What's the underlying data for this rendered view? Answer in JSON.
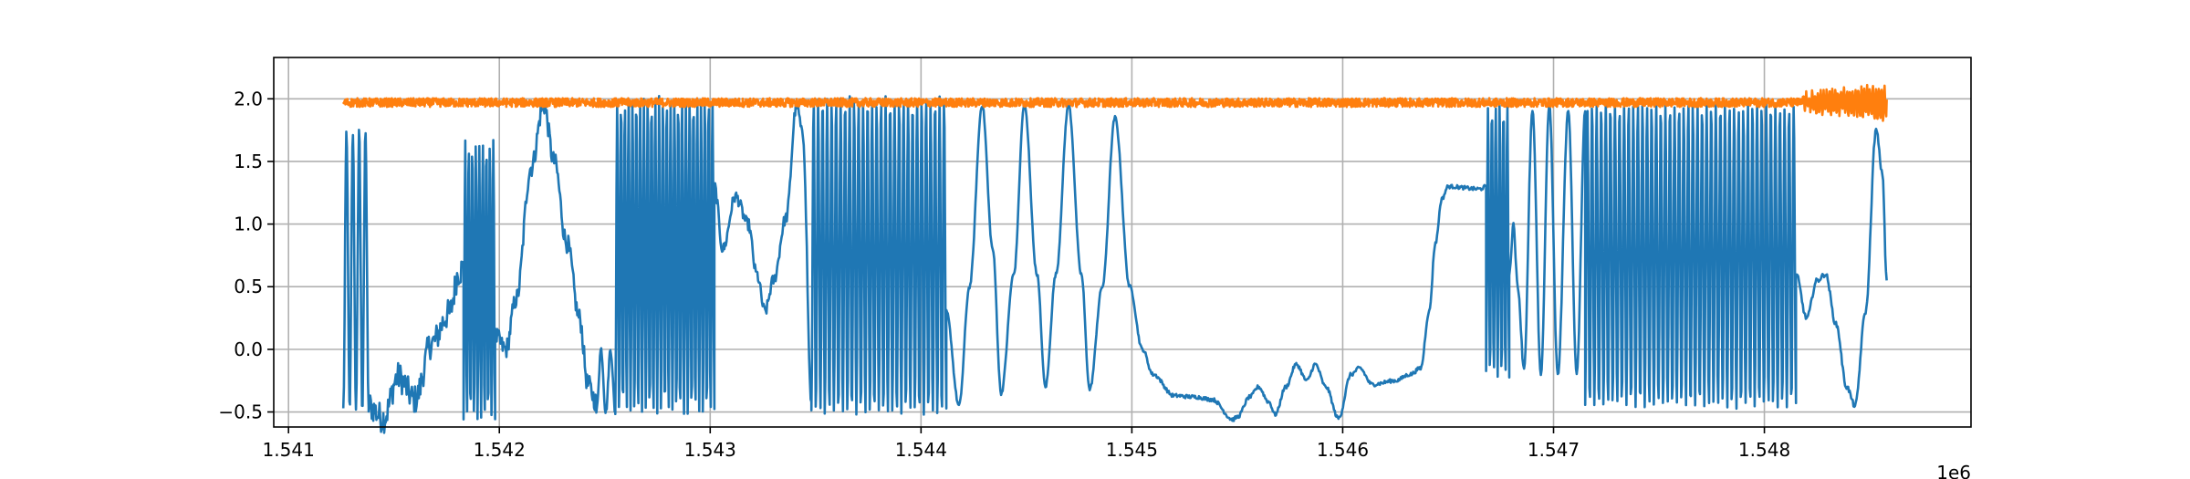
{
  "chart_data": {
    "type": "line",
    "title": "",
    "xlabel": "",
    "ylabel": "",
    "x_offset_label": "1e6",
    "xlim": [
      1.54093,
      1.54898
    ],
    "ylim": [
      -0.62,
      2.33
    ],
    "grid": true,
    "legend": "none",
    "x_ticks": [
      1.541,
      1.542,
      1.543,
      1.544,
      1.545,
      1.546,
      1.547,
      1.548
    ],
    "x_tick_labels": [
      "1.541",
      "1.542",
      "1.543",
      "1.544",
      "1.545",
      "1.546",
      "1.547",
      "1.548"
    ],
    "y_ticks": [
      -0.5,
      0.0,
      0.5,
      1.0,
      1.5,
      2.0
    ],
    "y_tick_labels": [
      "−0.5",
      "0.0",
      "0.5",
      "1.0",
      "1.5",
      "2.0"
    ],
    "series": [
      {
        "color": "#1f77b4",
        "x_range": [
          1.54126,
          1.54858
        ],
        "segments": [
          {
            "type": "osc",
            "x0": 1.54126,
            "x1": 1.54138,
            "cycles": 4,
            "lo": -0.48,
            "hi": 1.74
          },
          {
            "type": "pts",
            "pts": [
              [
                1.54138,
                -0.45
              ],
              [
                1.54145,
                -0.55
              ],
              [
                1.54152,
                -0.22
              ],
              [
                1.5416,
                -0.4
              ],
              [
                1.54168,
                0.05
              ],
              [
                1.54176,
                0.28
              ],
              [
                1.54181,
                0.62
              ],
              [
                1.54183,
                0.65
              ]
            ],
            "noise": 0.12
          },
          {
            "type": "osc",
            "x0": 1.54183,
            "x1": 1.54198,
            "cycles": 9,
            "lo": -0.55,
            "hi": 1.65
          },
          {
            "type": "pts",
            "pts": [
              [
                1.54198,
                0.1
              ],
              [
                1.54203,
                0.0
              ],
              [
                1.54208,
                0.4
              ],
              [
                1.54215,
                1.45
              ],
              [
                1.54221,
                1.95
              ],
              [
                1.54226,
                1.5
              ],
              [
                1.54232,
                0.85
              ],
              [
                1.54238,
                0.25
              ],
              [
                1.54242,
                -0.28
              ],
              [
                1.54246,
                -0.42
              ]
            ],
            "noise": 0.08
          },
          {
            "type": "osc",
            "x0": 1.54246,
            "x1": 1.54255,
            "cycles": 2,
            "lo": -0.5,
            "hi": 0.0
          },
          {
            "type": "osc",
            "x0": 1.54255,
            "x1": 1.54302,
            "cycles": 26,
            "lo": -0.5,
            "hi": 2.0
          },
          {
            "type": "pts",
            "pts": [
              [
                1.54302,
                1.3
              ],
              [
                1.54306,
                0.8
              ],
              [
                1.54312,
                1.22
              ],
              [
                1.54318,
                1.0
              ],
              [
                1.54322,
                0.6
              ],
              [
                1.54326,
                0.3
              ],
              [
                1.5433,
                0.55
              ],
              [
                1.54336,
                1.05
              ],
              [
                1.54341,
                1.95
              ],
              [
                1.54344,
                1.7
              ],
              [
                1.54348,
                -0.42
              ]
            ],
            "noise": 0.05
          },
          {
            "type": "osc",
            "x0": 1.54348,
            "x1": 1.54412,
            "cycles": 30,
            "lo": -0.5,
            "hi": 2.0
          },
          {
            "type": "pts",
            "pts": [
              [
                1.54412,
                0.3
              ],
              [
                1.54418,
                -0.45
              ],
              [
                1.54423,
                0.5
              ],
              [
                1.54429,
                1.95
              ],
              [
                1.54434,
                0.8
              ],
              [
                1.54438,
                -0.35
              ],
              [
                1.54444,
                0.6
              ],
              [
                1.54449,
                1.95
              ],
              [
                1.54455,
                0.6
              ],
              [
                1.54459,
                -0.3
              ],
              [
                1.54464,
                0.6
              ],
              [
                1.5447,
                1.95
              ],
              [
                1.54476,
                0.6
              ],
              [
                1.5448,
                -0.32
              ],
              [
                1.54486,
                0.5
              ],
              [
                1.54492,
                1.85
              ],
              [
                1.54499,
                0.5
              ],
              [
                1.54505,
                0.0
              ],
              [
                1.5451,
                -0.2
              ],
              [
                1.5452,
                -0.37
              ],
              [
                1.5453,
                -0.38
              ],
              [
                1.54538,
                -0.4
              ],
              [
                1.54548,
                -0.56
              ],
              [
                1.5455,
                -0.54
              ],
              [
                1.54556,
                -0.38
              ],
              [
                1.5456,
                -0.3
              ],
              [
                1.54565,
                -0.42
              ],
              [
                1.54568,
                -0.52
              ],
              [
                1.54573,
                -0.3
              ],
              [
                1.54578,
                -0.12
              ],
              [
                1.54583,
                -0.25
              ],
              [
                1.54587,
                -0.12
              ],
              [
                1.54592,
                -0.3
              ],
              [
                1.54598,
                -0.55
              ],
              [
                1.54604,
                -0.2
              ],
              [
                1.54608,
                -0.15
              ],
              [
                1.54614,
                -0.28
              ],
              [
                1.54625,
                -0.25
              ],
              [
                1.54632,
                -0.2
              ],
              [
                1.54637,
                -0.15
              ],
              [
                1.54641,
                0.3
              ],
              [
                1.54644,
                0.85
              ],
              [
                1.54647,
                1.2
              ],
              [
                1.5465,
                1.3
              ],
              [
                1.54665,
                1.28
              ],
              [
                1.54668,
                1.3
              ]
            ],
            "noise": 0.015
          },
          {
            "type": "osc",
            "x0": 1.54668,
            "x1": 1.54679,
            "cycles": 6,
            "lo": -0.2,
            "hi": 1.95
          },
          {
            "type": "pts",
            "pts": [
              [
                1.54679,
                0.6
              ],
              [
                1.54681,
                1.0
              ],
              [
                1.54683,
                0.5
              ],
              [
                1.54686,
                -0.15
              ],
              [
                1.5469,
                1.9
              ],
              [
                1.54694,
                -0.2
              ],
              [
                1.54698,
                1.95
              ],
              [
                1.54702,
                -0.2
              ],
              [
                1.54707,
                1.9
              ],
              [
                1.54711,
                -0.2
              ],
              [
                1.54715,
                1.9
              ]
            ],
            "noise": 0.02
          },
          {
            "type": "osc",
            "x0": 1.54715,
            "x1": 1.54815,
            "cycles": 46,
            "lo": -0.45,
            "hi": 1.95
          },
          {
            "type": "pts",
            "pts": [
              [
                1.54815,
                0.6
              ],
              [
                1.5482,
                0.25
              ],
              [
                1.54825,
                0.55
              ],
              [
                1.54829,
                0.6
              ],
              [
                1.54834,
                0.2
              ],
              [
                1.54839,
                -0.3
              ],
              [
                1.54843,
                -0.45
              ],
              [
                1.54848,
                0.3
              ],
              [
                1.54853,
                1.75
              ],
              [
                1.54856,
                1.4
              ],
              [
                1.54858,
                0.55
              ]
            ],
            "noise": 0.02
          }
        ]
      },
      {
        "color": "#ff7f0e",
        "x_range": [
          1.54126,
          1.54858
        ],
        "base": 1.97,
        "noise": 0.035,
        "end_x": 1.54818,
        "end_amp": 0.1
      }
    ]
  }
}
